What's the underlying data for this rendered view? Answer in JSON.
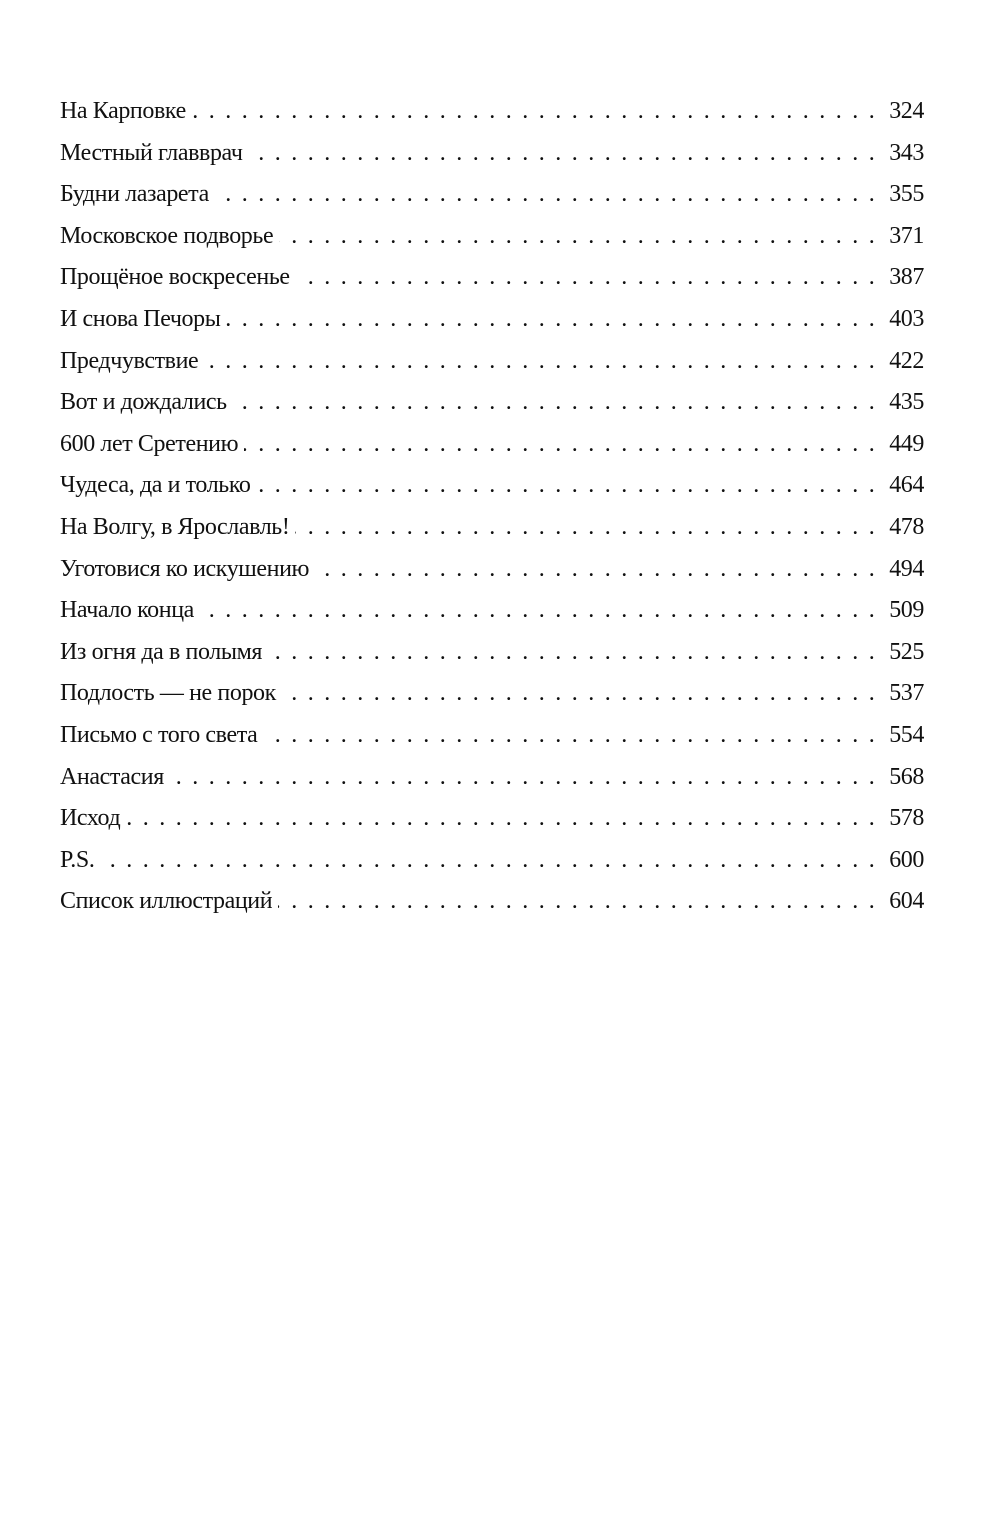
{
  "toc": {
    "entries": [
      {
        "title": "На Карповке",
        "page": "324"
      },
      {
        "title": "Местный главврач",
        "page": "343"
      },
      {
        "title": "Будни лазарета",
        "page": "355"
      },
      {
        "title": "Московское подворье",
        "page": "371"
      },
      {
        "title": "Прощёное воскресенье",
        "page": "387"
      },
      {
        "title": "И снова Печоры",
        "page": "403"
      },
      {
        "title": "Предчувствие",
        "page": "422"
      },
      {
        "title": "Вот и дождались",
        "page": "435"
      },
      {
        "title": "600 лет Сретению",
        "page": "449"
      },
      {
        "title": "Чудеса, да и только",
        "page": "464"
      },
      {
        "title": "На Волгу, в Ярославль!",
        "page": "478"
      },
      {
        "title": "Уготовися ко искушению",
        "page": "494"
      },
      {
        "title": "Начало конца",
        "page": "509"
      },
      {
        "title": "Из огня да в полымя",
        "page": "525"
      },
      {
        "title": "Подлость — не порок",
        "page": "537"
      },
      {
        "title": "Письмо с того света",
        "page": "554"
      },
      {
        "title": "Анастасия",
        "page": "568"
      },
      {
        "title": "Исход",
        "page": "578"
      },
      {
        "title": "P.S.",
        "page": "600"
      },
      {
        "title": "Список иллюстраций",
        "page": "604"
      }
    ]
  }
}
